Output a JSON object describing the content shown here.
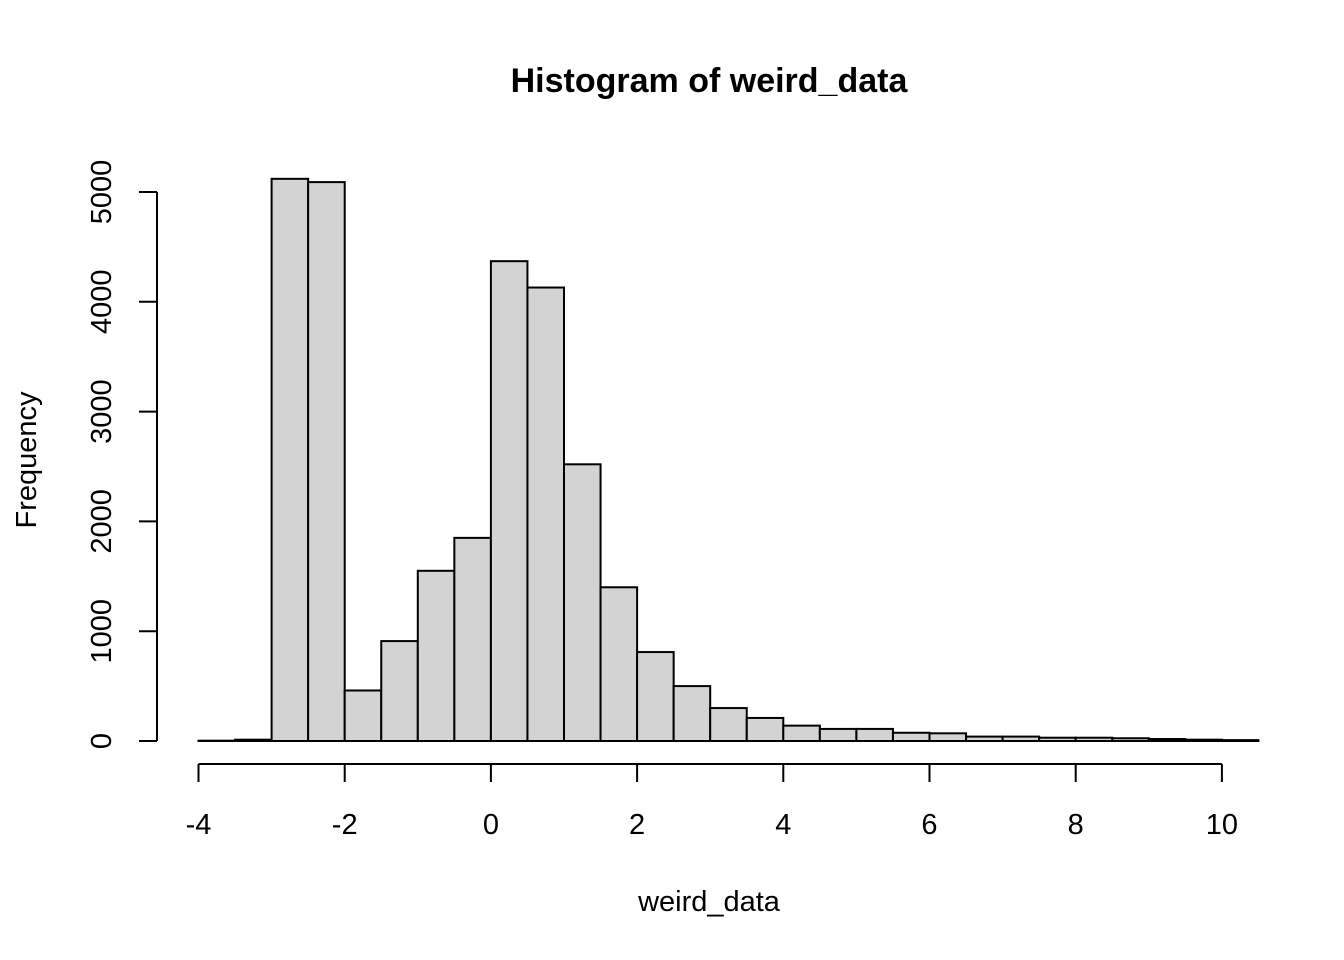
{
  "chart_data": {
    "type": "bar",
    "title": "Histogram of weird_data",
    "xlabel": "weird_data",
    "ylabel": "Frequency",
    "bin_width": 0.5,
    "bins": [
      {
        "x0": -4.0,
        "x1": -3.5,
        "count": 3
      },
      {
        "x0": -3.5,
        "x1": -3.0,
        "count": 12
      },
      {
        "x0": -3.0,
        "x1": -2.5,
        "count": 5120
      },
      {
        "x0": -2.5,
        "x1": -2.0,
        "count": 5090
      },
      {
        "x0": -2.0,
        "x1": -1.5,
        "count": 460
      },
      {
        "x0": -1.5,
        "x1": -1.0,
        "count": 910
      },
      {
        "x0": -1.0,
        "x1": -0.5,
        "count": 1550
      },
      {
        "x0": -0.5,
        "x1": 0.0,
        "count": 1850
      },
      {
        "x0": 0.0,
        "x1": 0.5,
        "count": 4370
      },
      {
        "x0": 0.5,
        "x1": 1.0,
        "count": 4130
      },
      {
        "x0": 1.0,
        "x1": 1.5,
        "count": 2520
      },
      {
        "x0": 1.5,
        "x1": 2.0,
        "count": 1400
      },
      {
        "x0": 2.0,
        "x1": 2.5,
        "count": 810
      },
      {
        "x0": 2.5,
        "x1": 3.0,
        "count": 500
      },
      {
        "x0": 3.0,
        "x1": 3.5,
        "count": 300
      },
      {
        "x0": 3.5,
        "x1": 4.0,
        "count": 210
      },
      {
        "x0": 4.0,
        "x1": 4.5,
        "count": 140
      },
      {
        "x0": 4.5,
        "x1": 5.0,
        "count": 110
      },
      {
        "x0": 5.0,
        "x1": 5.5,
        "count": 110
      },
      {
        "x0": 5.5,
        "x1": 6.0,
        "count": 75
      },
      {
        "x0": 6.0,
        "x1": 6.5,
        "count": 70
      },
      {
        "x0": 6.5,
        "x1": 7.0,
        "count": 40
      },
      {
        "x0": 7.0,
        "x1": 7.5,
        "count": 40
      },
      {
        "x0": 7.5,
        "x1": 8.0,
        "count": 30
      },
      {
        "x0": 8.0,
        "x1": 8.5,
        "count": 30
      },
      {
        "x0": 8.5,
        "x1": 9.0,
        "count": 25
      },
      {
        "x0": 9.0,
        "x1": 9.5,
        "count": 18
      },
      {
        "x0": 9.5,
        "x1": 10.0,
        "count": 12
      },
      {
        "x0": 10.0,
        "x1": 10.5,
        "count": 8
      }
    ],
    "xlim": [
      -4,
      10.5
    ],
    "ylim": [
      0,
      5120
    ],
    "x_ticks": [
      {
        "value": -4,
        "label": "-4"
      },
      {
        "value": -2,
        "label": "-2"
      },
      {
        "value": 0,
        "label": "0"
      },
      {
        "value": 2,
        "label": "2"
      },
      {
        "value": 4,
        "label": "4"
      },
      {
        "value": 6,
        "label": "6"
      },
      {
        "value": 8,
        "label": "8"
      },
      {
        "value": 10,
        "label": "10"
      }
    ],
    "y_ticks": [
      {
        "value": 0,
        "label": "0"
      },
      {
        "value": 1000,
        "label": "1000"
      },
      {
        "value": 2000,
        "label": "2000"
      },
      {
        "value": 3000,
        "label": "3000"
      },
      {
        "value": 4000,
        "label": "4000"
      },
      {
        "value": 5000,
        "label": "5000"
      }
    ],
    "bar_color": "#d3d3d3",
    "edge_color": "#000000",
    "grid": false,
    "legend": "none"
  }
}
